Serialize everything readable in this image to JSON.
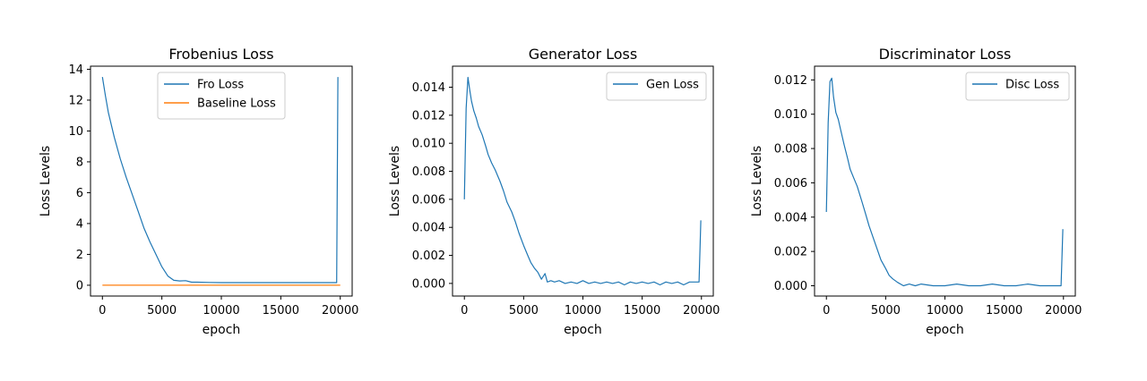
{
  "chart_data": [
    {
      "type": "line",
      "title": "Frobenius Loss",
      "xlabel": "epoch",
      "ylabel": "Loss Levels",
      "xlim": [
        -1000,
        21000
      ],
      "ylim": [
        -0.7,
        14.2
      ],
      "xticks": [
        0,
        5000,
        10000,
        15000,
        20000
      ],
      "yticks": [
        0,
        2,
        4,
        6,
        8,
        10,
        12,
        14
      ],
      "ytick_labels": [
        "0",
        "2",
        "4",
        "6",
        "8",
        "10",
        "12",
        "14"
      ],
      "grid": false,
      "legend": "upper center",
      "series": [
        {
          "name": "Fro Loss",
          "color": "#1f77b4",
          "x": [
            0,
            250,
            500,
            1000,
            1500,
            2000,
            2500,
            3000,
            3500,
            4000,
            4500,
            5000,
            5500,
            6000,
            6500,
            7000,
            7500,
            8000,
            9000,
            10000,
            11000,
            12000,
            13000,
            14000,
            15000,
            16000,
            17000,
            18000,
            19000,
            19700,
            19800
          ],
          "y": [
            13.5,
            12.3,
            11.2,
            9.6,
            8.2,
            7.0,
            5.9,
            4.8,
            3.7,
            2.8,
            2.0,
            1.2,
            0.6,
            0.32,
            0.28,
            0.3,
            0.2,
            0.2,
            0.18,
            0.17,
            0.17,
            0.17,
            0.17,
            0.17,
            0.17,
            0.17,
            0.17,
            0.17,
            0.17,
            0.17,
            13.5
          ]
        },
        {
          "name": "Baseline Loss",
          "color": "#ff7f0e",
          "x": [
            0,
            20000
          ],
          "y": [
            0,
            0
          ]
        }
      ]
    },
    {
      "type": "line",
      "title": "Generator Loss",
      "xlabel": "epoch",
      "ylabel": "Loss Levels",
      "xlim": [
        -1000,
        21000
      ],
      "ylim": [
        -0.0009,
        0.0155
      ],
      "xticks": [
        0,
        5000,
        10000,
        15000,
        20000
      ],
      "yticks": [
        0,
        0.002,
        0.004,
        0.006,
        0.008,
        0.01,
        0.012,
        0.014
      ],
      "ytick_labels": [
        "0.000",
        "0.002",
        "0.004",
        "0.006",
        "0.008",
        "0.010",
        "0.012",
        "0.014"
      ],
      "grid": false,
      "legend": "upper right",
      "series": [
        {
          "name": "Gen Loss",
          "color": "#1f77b4",
          "x": [
            0,
            150,
            300,
            450,
            600,
            800,
            1000,
            1200,
            1500,
            1800,
            2000,
            2300,
            2600,
            3000,
            3300,
            3600,
            4000,
            4300,
            4600,
            5000,
            5300,
            5600,
            5900,
            6200,
            6500,
            6800,
            7000,
            7300,
            7600,
            8000,
            8500,
            9000,
            9500,
            10000,
            10500,
            11000,
            11500,
            12000,
            12500,
            13000,
            13500,
            14000,
            14500,
            15000,
            15500,
            16000,
            16500,
            17000,
            17500,
            18000,
            18500,
            19000,
            19500,
            19800,
            19950
          ],
          "y": [
            0.006,
            0.0125,
            0.0147,
            0.0138,
            0.013,
            0.0123,
            0.0118,
            0.0112,
            0.0106,
            0.0098,
            0.0092,
            0.0086,
            0.0081,
            0.0073,
            0.0066,
            0.0058,
            0.0051,
            0.0044,
            0.0036,
            0.0027,
            0.0021,
            0.0015,
            0.0011,
            0.0008,
            0.0003,
            0.0007,
            0.0001,
            0.0002,
            0.0001,
            0.0002,
            0.0,
            0.0001,
            0.0,
            0.0002,
            0.0,
            0.0001,
            0.0,
            0.0001,
            0.0,
            0.0001,
            -0.0001,
            0.0001,
            0.0,
            0.0001,
            0.0,
            0.0001,
            -0.0001,
            0.0001,
            0.0,
            0.0001,
            -0.0001,
            0.0001,
            0.0001,
            0.0001,
            0.0045
          ]
        }
      ]
    },
    {
      "type": "line",
      "title": "Discriminator Loss",
      "xlabel": "epoch",
      "ylabel": "Loss Levels",
      "xlim": [
        -1000,
        21000
      ],
      "ylim": [
        -0.0006,
        0.0128
      ],
      "xticks": [
        0,
        5000,
        10000,
        15000,
        20000
      ],
      "yticks": [
        0,
        0.002,
        0.004,
        0.006,
        0.008,
        0.01,
        0.012
      ],
      "ytick_labels": [
        "0.000",
        "0.002",
        "0.004",
        "0.006",
        "0.008",
        "0.010",
        "0.012"
      ],
      "grid": false,
      "legend": "upper right",
      "series": [
        {
          "name": "Disc Loss",
          "color": "#1f77b4",
          "x": [
            0,
            150,
            300,
            450,
            600,
            800,
            1000,
            1200,
            1500,
            1800,
            2000,
            2300,
            2600,
            3000,
            3300,
            3600,
            4000,
            4300,
            4600,
            5000,
            5300,
            5600,
            6000,
            6500,
            7000,
            7500,
            8000,
            9000,
            10000,
            11000,
            12000,
            13000,
            14000,
            15000,
            16000,
            17000,
            18000,
            19000,
            19800,
            19950
          ],
          "y": [
            0.0043,
            0.0095,
            0.0119,
            0.0121,
            0.011,
            0.0101,
            0.0097,
            0.0091,
            0.0082,
            0.0074,
            0.0068,
            0.0063,
            0.0058,
            0.0049,
            0.0042,
            0.0035,
            0.0027,
            0.0021,
            0.0015,
            0.001,
            0.0006,
            0.0004,
            0.0002,
            0.0,
            0.0001,
            0.0,
            0.0001,
            0.0,
            0.0,
            0.0001,
            0.0,
            0.0,
            0.0001,
            0.0,
            0.0,
            0.0001,
            0.0,
            0.0,
            0.0,
            0.0033
          ]
        }
      ]
    }
  ]
}
